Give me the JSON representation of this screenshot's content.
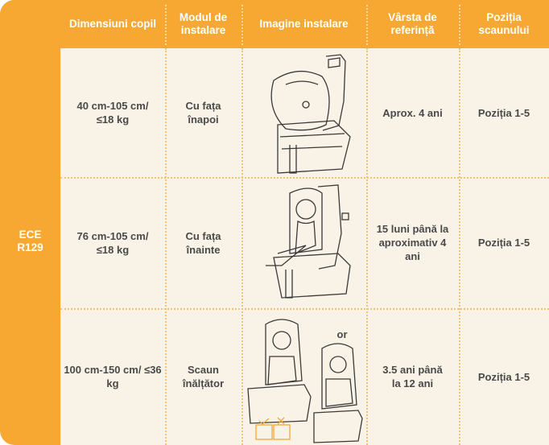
{
  "table": {
    "side_label": "ECE R129",
    "headers": [
      "Dimensiuni copil",
      "Modul de instalare",
      "Imagine instalare",
      "Vârsta de referință",
      "Poziția scaunului"
    ],
    "rows": [
      [
        "40 cm-105 cm/ ≤18 kg",
        "Cu fața înapoi",
        "Aprox. 4 ani",
        "Poziția 1-5"
      ],
      [
        "76 cm-105 cm/ ≤18 kg",
        "Cu fața înainte",
        "15 luni până la aproximativ 4 ani",
        "Poziția 1-5"
      ],
      [
        "100 cm-150 cm/ ≤36 kg",
        "Scaun înălțător",
        "3.5 ani până la 12 ani",
        "Poziția 1-5"
      ]
    ],
    "image_or": "or"
  }
}
